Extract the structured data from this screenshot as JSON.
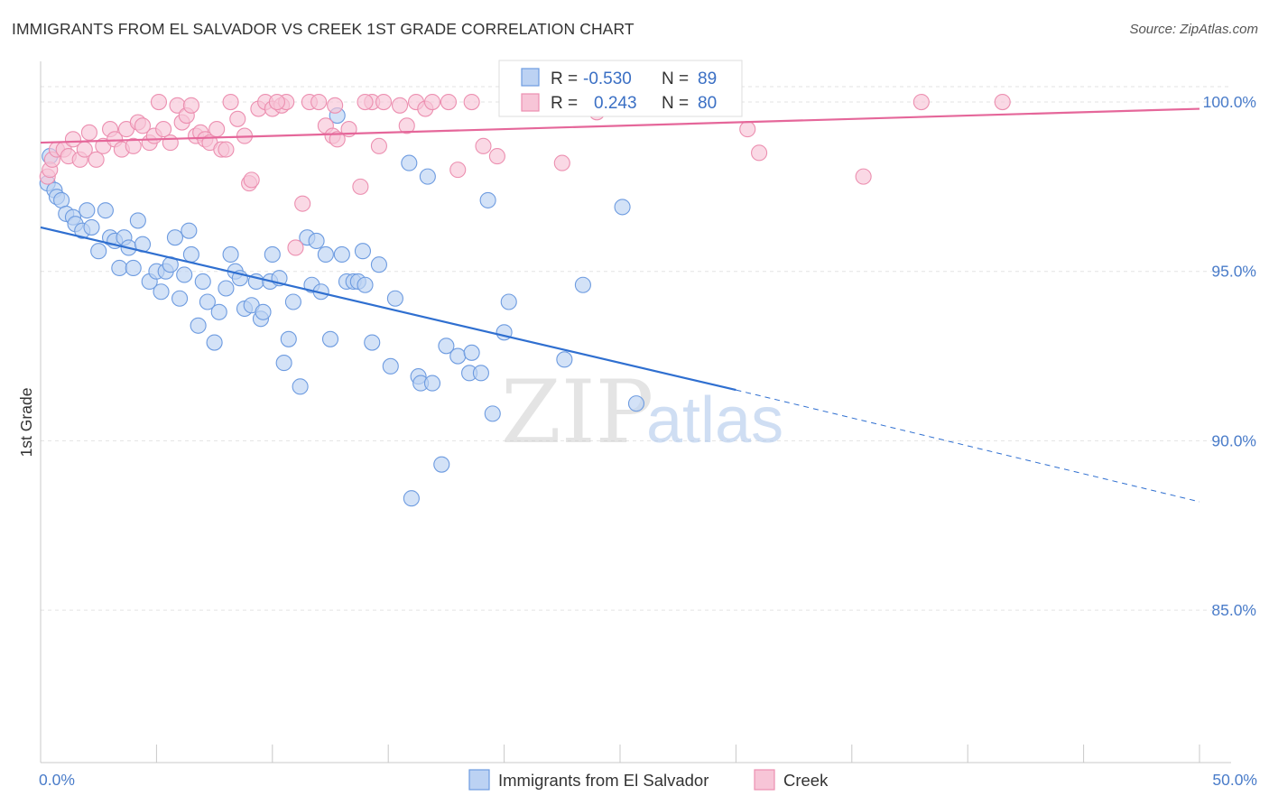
{
  "title": "IMMIGRANTS FROM EL SALVADOR VS CREEK 1ST GRADE CORRELATION CHART",
  "source": "Source: ZipAtlas.com",
  "watermark": {
    "zip": "ZIP",
    "atlas": "atlas"
  },
  "colors": {
    "blue": "#6d9be0",
    "blue_fill": "#bcd2f3",
    "blue_line": "#2f6fd0",
    "pink": "#ec8fb0",
    "pink_fill": "#f7c5d7",
    "pink_line": "#e5679a",
    "tick_text": "#4a7cc9"
  },
  "legend": {
    "rows": [
      {
        "r_label": "R =",
        "r_value": "-0.530",
        "n_label": "N =",
        "n_value": "89"
      },
      {
        "r_label": "R =",
        "r_value": "0.243",
        "n_label": "N =",
        "n_value": "80"
      }
    ]
  },
  "bottom_legend": [
    "Immigrants from El Salvador",
    "Creek"
  ],
  "chart_data": {
    "type": "scatter",
    "ylabel": "1st Grade",
    "xlim": [
      0,
      50
    ],
    "ylim": [
      80.5,
      101.2
    ],
    "x_tick_labels": [
      {
        "value": 0,
        "label": "0.0%"
      },
      {
        "value": 50,
        "label": "50.0%"
      }
    ],
    "y_tick_labels": [
      {
        "value": 100,
        "label": "100.0%"
      },
      {
        "value": 95,
        "label": "95.0%"
      },
      {
        "value": 90,
        "label": "90.0%"
      },
      {
        "value": 85,
        "label": "85.0%"
      }
    ],
    "x_minor_ticks": [
      0,
      5,
      10,
      15,
      20,
      25,
      30,
      35,
      40,
      45,
      50
    ],
    "grid": true,
    "series": [
      {
        "name": "Immigrants from El Salvador",
        "color": "#6d9be0",
        "trend": {
          "x0": 0,
          "y0": 96.3,
          "x1": 30,
          "y1": 91.5,
          "dashed_to_x": 50,
          "dashed_to_y": 88.2
        },
        "points": [
          [
            0.3,
            97.6
          ],
          [
            0.4,
            98.4
          ],
          [
            0.6,
            97.4
          ],
          [
            0.7,
            97.2
          ],
          [
            0.9,
            97.1
          ],
          [
            1.1,
            96.7
          ],
          [
            1.4,
            96.6
          ],
          [
            1.5,
            96.4
          ],
          [
            1.8,
            96.2
          ],
          [
            2.0,
            96.8
          ],
          [
            2.2,
            96.3
          ],
          [
            2.5,
            95.6
          ],
          [
            2.8,
            96.8
          ],
          [
            3.0,
            96.0
          ],
          [
            3.2,
            95.9
          ],
          [
            3.4,
            95.1
          ],
          [
            3.6,
            96.0
          ],
          [
            3.8,
            95.7
          ],
          [
            4.0,
            95.1
          ],
          [
            4.2,
            96.5
          ],
          [
            4.4,
            95.8
          ],
          [
            4.7,
            94.7
          ],
          [
            5.0,
            95.0
          ],
          [
            5.2,
            94.4
          ],
          [
            5.4,
            95.0
          ],
          [
            5.6,
            95.2
          ],
          [
            5.8,
            96.0
          ],
          [
            6.0,
            94.2
          ],
          [
            6.2,
            94.9
          ],
          [
            6.4,
            96.2
          ],
          [
            6.5,
            95.5
          ],
          [
            6.8,
            93.4
          ],
          [
            7.0,
            94.7
          ],
          [
            7.2,
            94.1
          ],
          [
            7.5,
            92.9
          ],
          [
            7.7,
            93.8
          ],
          [
            8.0,
            94.5
          ],
          [
            8.2,
            95.5
          ],
          [
            8.4,
            95.0
          ],
          [
            8.6,
            94.8
          ],
          [
            8.8,
            93.9
          ],
          [
            9.1,
            94.0
          ],
          [
            9.3,
            94.7
          ],
          [
            9.5,
            93.6
          ],
          [
            9.6,
            93.8
          ],
          [
            9.9,
            94.7
          ],
          [
            10.0,
            95.5
          ],
          [
            10.3,
            94.8
          ],
          [
            10.5,
            92.3
          ],
          [
            10.7,
            93.0
          ],
          [
            10.9,
            94.1
          ],
          [
            11.2,
            91.6
          ],
          [
            11.5,
            96.0
          ],
          [
            11.7,
            94.6
          ],
          [
            11.9,
            95.9
          ],
          [
            12.1,
            94.4
          ],
          [
            12.3,
            95.5
          ],
          [
            12.5,
            93.0
          ],
          [
            12.8,
            99.6
          ],
          [
            13.0,
            95.5
          ],
          [
            13.2,
            94.7
          ],
          [
            13.5,
            94.7
          ],
          [
            13.7,
            94.7
          ],
          [
            13.9,
            95.6
          ],
          [
            14.0,
            94.6
          ],
          [
            14.3,
            92.9
          ],
          [
            14.6,
            95.2
          ],
          [
            15.1,
            92.2
          ],
          [
            15.3,
            94.2
          ],
          [
            15.9,
            98.2
          ],
          [
            16.0,
            88.3
          ],
          [
            16.3,
            91.9
          ],
          [
            16.4,
            91.7
          ],
          [
            16.7,
            97.8
          ],
          [
            16.9,
            91.7
          ],
          [
            17.3,
            89.3
          ],
          [
            17.5,
            92.8
          ],
          [
            18.0,
            92.5
          ],
          [
            18.5,
            92.0
          ],
          [
            18.6,
            92.6
          ],
          [
            19.0,
            92.0
          ],
          [
            19.3,
            97.1
          ],
          [
            19.5,
            90.8
          ],
          [
            20.0,
            93.2
          ],
          [
            20.2,
            94.1
          ],
          [
            22.6,
            92.4
          ],
          [
            23.4,
            94.6
          ],
          [
            25.1,
            96.9
          ],
          [
            25.7,
            91.1
          ]
        ]
      },
      {
        "name": "Creek",
        "color": "#ec8fb0",
        "trend": {
          "x0": 0,
          "y0": 98.8,
          "x1": 50,
          "y1": 99.8
        },
        "points": [
          [
            0.3,
            97.8
          ],
          [
            0.4,
            98.0
          ],
          [
            0.5,
            98.3
          ],
          [
            0.7,
            98.6
          ],
          [
            1.0,
            98.6
          ],
          [
            1.2,
            98.4
          ],
          [
            1.4,
            98.9
          ],
          [
            1.7,
            98.3
          ],
          [
            1.9,
            98.6
          ],
          [
            2.1,
            99.1
          ],
          [
            2.4,
            98.3
          ],
          [
            2.7,
            98.7
          ],
          [
            3.0,
            99.2
          ],
          [
            3.2,
            98.9
          ],
          [
            3.5,
            98.6
          ],
          [
            3.7,
            99.2
          ],
          [
            4.0,
            98.7
          ],
          [
            4.2,
            99.4
          ],
          [
            4.4,
            99.3
          ],
          [
            4.7,
            98.8
          ],
          [
            4.9,
            99.0
          ],
          [
            5.1,
            100.0
          ],
          [
            5.3,
            99.2
          ],
          [
            5.6,
            98.8
          ],
          [
            5.9,
            99.9
          ],
          [
            6.1,
            99.4
          ],
          [
            6.3,
            99.6
          ],
          [
            6.5,
            99.9
          ],
          [
            6.7,
            99.0
          ],
          [
            6.9,
            99.1
          ],
          [
            7.1,
            98.9
          ],
          [
            7.3,
            98.8
          ],
          [
            7.6,
            99.2
          ],
          [
            7.8,
            98.6
          ],
          [
            8.0,
            98.6
          ],
          [
            8.2,
            100.0
          ],
          [
            8.5,
            99.5
          ],
          [
            8.8,
            99.0
          ],
          [
            9.0,
            97.6
          ],
          [
            9.1,
            97.7
          ],
          [
            9.4,
            99.8
          ],
          [
            9.7,
            100.0
          ],
          [
            10.0,
            99.8
          ],
          [
            10.4,
            99.9
          ],
          [
            10.6,
            100.0
          ],
          [
            11.0,
            95.7
          ],
          [
            11.3,
            97.0
          ],
          [
            11.6,
            100.0
          ],
          [
            12.0,
            100.0
          ],
          [
            12.3,
            99.3
          ],
          [
            12.6,
            99.0
          ],
          [
            12.8,
            98.9
          ],
          [
            13.3,
            99.2
          ],
          [
            13.8,
            97.5
          ],
          [
            14.3,
            100.0
          ],
          [
            14.6,
            98.7
          ],
          [
            14.8,
            100.0
          ],
          [
            15.5,
            99.9
          ],
          [
            15.8,
            99.3
          ],
          [
            16.2,
            100.0
          ],
          [
            16.6,
            99.8
          ],
          [
            16.9,
            100.0
          ],
          [
            17.6,
            100.0
          ],
          [
            18.0,
            98.0
          ],
          [
            18.6,
            100.0
          ],
          [
            19.1,
            98.7
          ],
          [
            19.7,
            98.4
          ],
          [
            21.6,
            100.0
          ],
          [
            22.5,
            98.2
          ],
          [
            23.1,
            100.0
          ],
          [
            23.5,
            99.9
          ],
          [
            24.0,
            99.7
          ],
          [
            30.5,
            99.2
          ],
          [
            31.0,
            98.5
          ],
          [
            35.5,
            97.8
          ],
          [
            38.0,
            100.0
          ],
          [
            41.5,
            100.0
          ],
          [
            12.7,
            99.9
          ],
          [
            10.2,
            100.0
          ],
          [
            14.0,
            100.0
          ]
        ]
      }
    ]
  }
}
